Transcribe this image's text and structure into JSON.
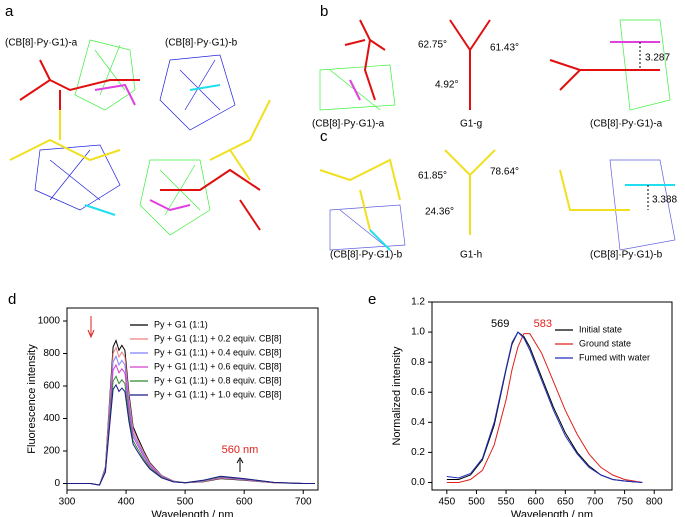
{
  "panels": {
    "a": {
      "letter": "a",
      "label_1": "(CB[8]·Py·G1)-a",
      "label_2": "(CB[8]·Py·G1)-b"
    },
    "b": {
      "letter": "b",
      "label_1": "(CB[8]·Py·G1)-a",
      "label_2": "G1-g",
      "label_3": "(CB[8]·Py·G1)-a",
      "angle_1": "62.75°",
      "angle_2": "61.43°",
      "angle_3": "4.92°",
      "distance": "3.287"
    },
    "c": {
      "letter": "c",
      "label_1": "(CB[8]·Py·G1)-b",
      "label_2": "G1-h",
      "label_3": "(CB[8]·Py·G1)-b",
      "angle_1": "61.85°",
      "angle_2": "78.64°",
      "angle_3": "24.36°",
      "distance": "3.388"
    }
  },
  "chart_data": [
    {
      "type": "line",
      "letter": "d",
      "xlabel": "Wavelength / nm",
      "ylabel": "Fluorescence intensity",
      "annotation": "560 nm",
      "xlim": [
        300,
        725
      ],
      "xticks": [
        300,
        400,
        500,
        600,
        700
      ],
      "ylim": [
        -40,
        1080
      ],
      "yticks": [
        0,
        200,
        400,
        600,
        800,
        1000
      ],
      "x": [
        300,
        340,
        355,
        365,
        372,
        378,
        383,
        388,
        393,
        398,
        405,
        412,
        420,
        430,
        440,
        460,
        480,
        500,
        530,
        560,
        600,
        650,
        700,
        720
      ],
      "series": [
        {
          "name": "Py + G1 (1:1)",
          "color": "#000000",
          "values": [
            0,
            0,
            -10,
            100,
            500,
            840,
            880,
            820,
            850,
            820,
            550,
            350,
            280,
            200,
            130,
            50,
            15,
            5,
            10,
            30,
            20,
            5,
            0,
            0
          ]
        },
        {
          "name": "Py + G1 (1:1) + 0.2 equiv. CB[8]",
          "color": "#f08080",
          "values": [
            0,
            0,
            -10,
            95,
            475,
            798,
            836,
            779,
            808,
            779,
            523,
            333,
            266,
            190,
            124,
            48,
            14,
            5,
            12,
            33,
            22,
            5,
            0,
            0
          ]
        },
        {
          "name": "Py + G1 (1:1) + 0.4 equiv. CB[8]",
          "color": "#8080ff",
          "values": [
            0,
            0,
            -10,
            89,
            445,
            748,
            783,
            730,
            757,
            730,
            490,
            312,
            249,
            178,
            116,
            45,
            13,
            5,
            14,
            36,
            24,
            6,
            0,
            0
          ]
        },
        {
          "name": "Py + G1 (1:1) + 0.6 equiv. CB[8]",
          "color": "#d040d0",
          "values": [
            0,
            0,
            -10,
            83,
            415,
            697,
            730,
            681,
            706,
            681,
            457,
            291,
            232,
            166,
            108,
            42,
            12,
            5,
            16,
            39,
            26,
            6,
            0,
            0
          ]
        },
        {
          "name": "Py + G1 (1:1) + 0.8 equiv. CB[8]",
          "color": "#2e8b2e",
          "values": [
            0,
            0,
            -10,
            75,
            375,
            630,
            660,
            615,
            638,
            615,
            413,
            263,
            210,
            150,
            98,
            38,
            11,
            5,
            18,
            42,
            28,
            7,
            0,
            0
          ]
        },
        {
          "name": "Py + G1 (1:1) + 1.0 equiv. CB[8]",
          "color": "#1a1a8c",
          "values": [
            0,
            0,
            -10,
            69,
            345,
            580,
            607,
            566,
            587,
            566,
            380,
            242,
            193,
            138,
            90,
            35,
            10,
            5,
            20,
            45,
            30,
            7,
            0,
            0
          ]
        }
      ]
    },
    {
      "type": "line",
      "letter": "e",
      "xlabel": "Wavelength / nm",
      "ylabel": "Normalized intensity",
      "peaks": [
        {
          "value": 569,
          "color": "#000000"
        },
        {
          "value": 583,
          "color": "#e0201c"
        }
      ],
      "xlim": [
        425,
        830
      ],
      "xticks": [
        450,
        500,
        550,
        600,
        650,
        700,
        750,
        800
      ],
      "ylim": [
        -0.05,
        1.2
      ],
      "yticks": [
        {
          "value": 0,
          "label": "0.0"
        },
        {
          "value": 0.2,
          "label": "0.2"
        },
        {
          "value": 0.4,
          "label": "0.4"
        },
        {
          "value": 0.6,
          "label": "0.6"
        },
        {
          "value": 0.8,
          "label": "0.8"
        },
        {
          "value": 1,
          "label": "1.0"
        },
        {
          "value": 1.2,
          "label": "1.2"
        }
      ],
      "x": [
        450,
        470,
        490,
        510,
        530,
        550,
        560,
        570,
        580,
        590,
        610,
        630,
        650,
        670,
        690,
        710,
        730,
        750,
        780
      ],
      "series": [
        {
          "name": "Initial state",
          "color": "#000000",
          "values": [
            0.02,
            0.02,
            0.05,
            0.15,
            0.38,
            0.75,
            0.92,
            1.0,
            0.97,
            0.9,
            0.7,
            0.5,
            0.33,
            0.2,
            0.11,
            0.05,
            0.02,
            0.01,
            0
          ]
        },
        {
          "name": "Ground state",
          "color": "#e0201c",
          "values": [
            0,
            0,
            0.02,
            0.08,
            0.25,
            0.55,
            0.75,
            0.9,
            0.99,
            0.99,
            0.86,
            0.67,
            0.48,
            0.32,
            0.19,
            0.1,
            0.05,
            0.02,
            0
          ]
        },
        {
          "name": "Fumed with water",
          "color": "#1f2fbf",
          "values": [
            0.04,
            0.03,
            0.06,
            0.16,
            0.4,
            0.76,
            0.93,
            1.0,
            0.96,
            0.88,
            0.68,
            0.48,
            0.31,
            0.19,
            0.1,
            0.05,
            0.02,
            0.01,
            0
          ]
        }
      ]
    }
  ]
}
